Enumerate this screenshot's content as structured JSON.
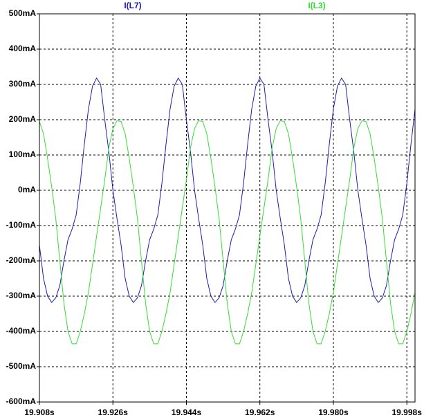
{
  "chart_data": {
    "type": "line",
    "x": [
      19.908,
      19.909,
      19.91,
      19.911,
      19.912,
      19.913,
      19.914,
      19.915,
      19.916,
      19.917,
      19.918,
      19.919,
      19.92,
      19.921,
      19.922,
      19.923,
      19.924,
      19.925,
      19.926,
      19.927,
      19.928,
      19.929,
      19.93,
      19.931,
      19.932,
      19.933,
      19.934,
      19.935,
      19.936,
      19.937,
      19.938,
      19.939,
      19.94,
      19.941,
      19.942,
      19.943,
      19.944,
      19.945,
      19.946,
      19.947,
      19.948,
      19.949,
      19.95,
      19.951,
      19.952,
      19.953,
      19.954,
      19.955,
      19.956,
      19.957,
      19.958,
      19.959,
      19.96,
      19.961,
      19.962,
      19.963,
      19.964,
      19.965,
      19.966,
      19.967,
      19.968,
      19.969,
      19.97,
      19.971,
      19.972,
      19.973,
      19.974,
      19.975,
      19.976,
      19.977,
      19.978,
      19.979,
      19.98,
      19.981,
      19.982,
      19.983,
      19.984,
      19.985,
      19.986,
      19.987,
      19.988,
      19.989,
      19.99,
      19.991,
      19.992,
      19.993,
      19.994,
      19.995,
      19.996,
      19.997,
      19.998,
      19.999,
      20.0
    ],
    "series": [
      {
        "name": "I(L7)",
        "color": "#1c1cb0",
        "values": [
          -155,
          -250,
          -300,
          -318,
          -305,
          -270,
          -200,
          -140,
          -110,
          -70,
          20,
          130,
          230,
          295,
          318,
          300,
          200,
          110,
          0,
          -80,
          -155,
          -250,
          -300,
          -318,
          -305,
          -270,
          -200,
          -140,
          -110,
          -70,
          20,
          130,
          230,
          295,
          318,
          300,
          200,
          110,
          0,
          -80,
          -155,
          -250,
          -300,
          -318,
          -305,
          -270,
          -200,
          -140,
          -110,
          -70,
          20,
          130,
          230,
          295,
          318,
          300,
          200,
          110,
          0,
          -80,
          -155,
          -250,
          -300,
          -318,
          -305,
          -270,
          -200,
          -140,
          -110,
          -70,
          20,
          130,
          230,
          295,
          318,
          300,
          200,
          110,
          0,
          -80,
          -155,
          -250,
          -300,
          -318,
          -305,
          -270,
          -200,
          -140,
          -110,
          -70,
          20,
          130,
          230
        ]
      },
      {
        "name": "I(L3)",
        "color": "#33dd33",
        "values": [
          195,
          160,
          90,
          10,
          -80,
          -200,
          -320,
          -400,
          -435,
          -435,
          -400,
          -350,
          -290,
          -210,
          -130,
          -50,
          30,
          120,
          175,
          197,
          195,
          160,
          90,
          10,
          -80,
          -200,
          -320,
          -400,
          -435,
          -435,
          -400,
          -350,
          -290,
          -210,
          -130,
          -50,
          30,
          120,
          175,
          197,
          195,
          160,
          90,
          10,
          -80,
          -200,
          -320,
          -400,
          -435,
          -435,
          -400,
          -350,
          -290,
          -210,
          -130,
          -50,
          30,
          120,
          175,
          197,
          195,
          160,
          90,
          10,
          -80,
          -200,
          -320,
          -400,
          -435,
          -435,
          -400,
          -350,
          -290,
          -210,
          -130,
          -50,
          30,
          120,
          175,
          197,
          195,
          160,
          90,
          10,
          -80,
          -200,
          -320,
          -400,
          -435,
          -435,
          -400,
          -350,
          -290
        ]
      }
    ],
    "xlim": [
      19.908,
      20.0
    ],
    "ylim": [
      -600,
      500
    ],
    "xticks": [
      {
        "value": 19.908,
        "label": "19.908s"
      },
      {
        "value": 19.926,
        "label": "19.926s"
      },
      {
        "value": 19.944,
        "label": "19.944s"
      },
      {
        "value": 19.962,
        "label": "19.962s"
      },
      {
        "value": 19.98,
        "label": "19.980s"
      },
      {
        "value": 19.998,
        "label": "19.998s"
      }
    ],
    "yticks": [
      {
        "value": -600,
        "label": "-600mA"
      },
      {
        "value": -500,
        "label": "-500mA"
      },
      {
        "value": -400,
        "label": "-400mA"
      },
      {
        "value": -300,
        "label": "-300mA"
      },
      {
        "value": -200,
        "label": "-200mA"
      },
      {
        "value": -100,
        "label": "-100mA"
      },
      {
        "value": 0,
        "label": "0mA"
      },
      {
        "value": 100,
        "label": "100mA"
      },
      {
        "value": 200,
        "label": "200mA"
      },
      {
        "value": 300,
        "label": "300mA"
      },
      {
        "value": 400,
        "label": "400mA"
      },
      {
        "value": 500,
        "label": "500mA"
      }
    ],
    "grid": true
  }
}
